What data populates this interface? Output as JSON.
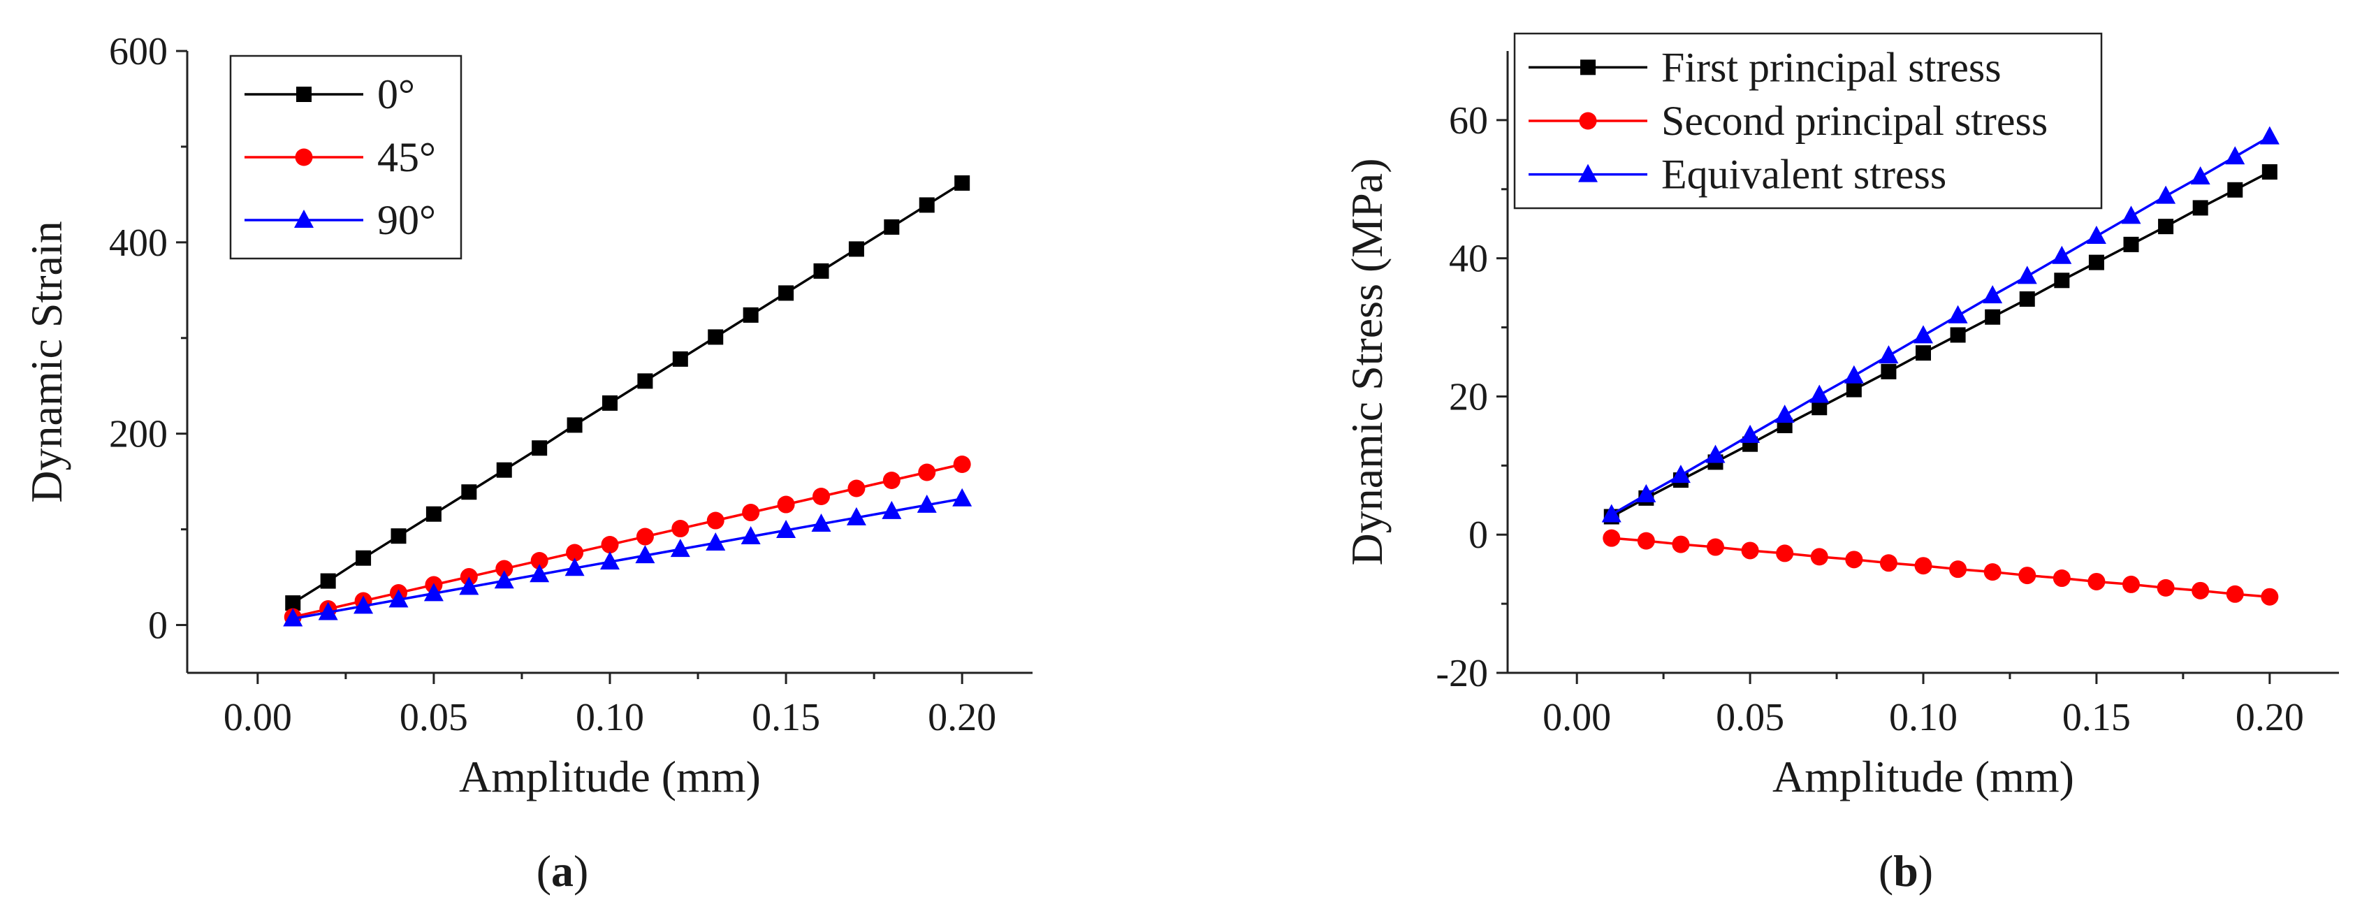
{
  "panels": {
    "a": {
      "caption_open": "(",
      "caption_letter": "a",
      "caption_close": ")"
    },
    "b": {
      "caption_open": "(",
      "caption_letter": "b",
      "caption_close": ")"
    }
  },
  "chart_data": [
    {
      "type": "line",
      "panel": "a",
      "title": "",
      "xlabel": "Amplitude (mm)",
      "ylabel": "Dynamic Strain",
      "xlim": [
        -0.02,
        0.22
      ],
      "ylim": [
        -50,
        600
      ],
      "xticks": [
        0.0,
        0.05,
        0.1,
        0.15,
        0.2
      ],
      "xtick_labels": [
        "0.00",
        "0.05",
        "0.10",
        "0.15",
        "0.20"
      ],
      "yticks": [
        0,
        200,
        400,
        600
      ],
      "ytick_labels": [
        "0",
        "200",
        "400",
        "600"
      ],
      "legend_position": "top-left",
      "x": [
        0.01,
        0.02,
        0.03,
        0.04,
        0.05,
        0.06,
        0.07,
        0.08,
        0.09,
        0.1,
        0.11,
        0.12,
        0.13,
        0.14,
        0.15,
        0.16,
        0.17,
        0.18,
        0.19,
        0.2
      ],
      "series": [
        {
          "name": "0°",
          "color": "#000000",
          "marker": "square",
          "values": [
            23,
            46,
            70,
            93,
            116,
            139,
            162,
            185,
            209,
            232,
            255,
            278,
            301,
            324,
            347,
            370,
            393,
            416,
            439,
            462
          ]
        },
        {
          "name": "45°",
          "color": "#ff0000",
          "marker": "circle",
          "values": [
            8.4,
            16.8,
            25.2,
            33.6,
            42,
            50.4,
            58.8,
            67.2,
            75.6,
            84,
            92.4,
            100.8,
            109.2,
            117.6,
            126,
            134.4,
            142.8,
            151.2,
            159.6,
            168
          ]
        },
        {
          "name": "90°",
          "color": "#0000ff",
          "marker": "triangle",
          "values": [
            6.6,
            13.2,
            19.8,
            26.4,
            33,
            39.6,
            46.2,
            52.8,
            59.4,
            66,
            72.6,
            79.2,
            85.8,
            92.4,
            99,
            105.6,
            112.2,
            118.8,
            125.4,
            132
          ]
        }
      ]
    },
    {
      "type": "line",
      "panel": "b",
      "title": "",
      "xlabel": "Amplitude (mm)",
      "ylabel": "Dynamic Stress (MPa)",
      "xlim": [
        -0.02,
        0.22
      ],
      "ylim": [
        -20,
        70
      ],
      "xticks": [
        0.0,
        0.05,
        0.1,
        0.15,
        0.2
      ],
      "xtick_labels": [
        "0.00",
        "0.05",
        "0.10",
        "0.15",
        "0.20"
      ],
      "yticks": [
        -20,
        0,
        20,
        40,
        60
      ],
      "ytick_labels": [
        "-20",
        "0",
        "20",
        "40",
        "60"
      ],
      "legend_position": "top-left",
      "x": [
        0.01,
        0.02,
        0.03,
        0.04,
        0.05,
        0.06,
        0.07,
        0.08,
        0.09,
        0.1,
        0.11,
        0.12,
        0.13,
        0.14,
        0.15,
        0.16,
        0.17,
        0.18,
        0.19,
        0.2
      ],
      "series": [
        {
          "name": "First principal stress",
          "color": "#000000",
          "marker": "square",
          "values": [
            2.6,
            5.3,
            7.9,
            10.5,
            13.1,
            15.8,
            18.4,
            21,
            23.6,
            26.3,
            28.9,
            31.5,
            34.1,
            36.8,
            39.4,
            42,
            44.6,
            47.3,
            49.9,
            52.5
          ]
        },
        {
          "name": "Second principal stress",
          "color": "#ff0000",
          "marker": "circle",
          "values": [
            -0.5,
            -0.9,
            -1.4,
            -1.8,
            -2.3,
            -2.7,
            -3.2,
            -3.6,
            -4.1,
            -4.5,
            -5,
            -5.4,
            -5.9,
            -6.3,
            -6.8,
            -7.2,
            -7.7,
            -8.1,
            -8.6,
            -9
          ]
        },
        {
          "name": "Equivalent stress",
          "color": "#0000ff",
          "marker": "triangle",
          "values": [
            2.9,
            5.8,
            8.6,
            11.5,
            14.4,
            17.3,
            20.2,
            23,
            25.9,
            28.8,
            31.7,
            34.6,
            37.4,
            40.3,
            43.2,
            46.1,
            49,
            51.8,
            54.7,
            57.6
          ]
        }
      ]
    }
  ]
}
